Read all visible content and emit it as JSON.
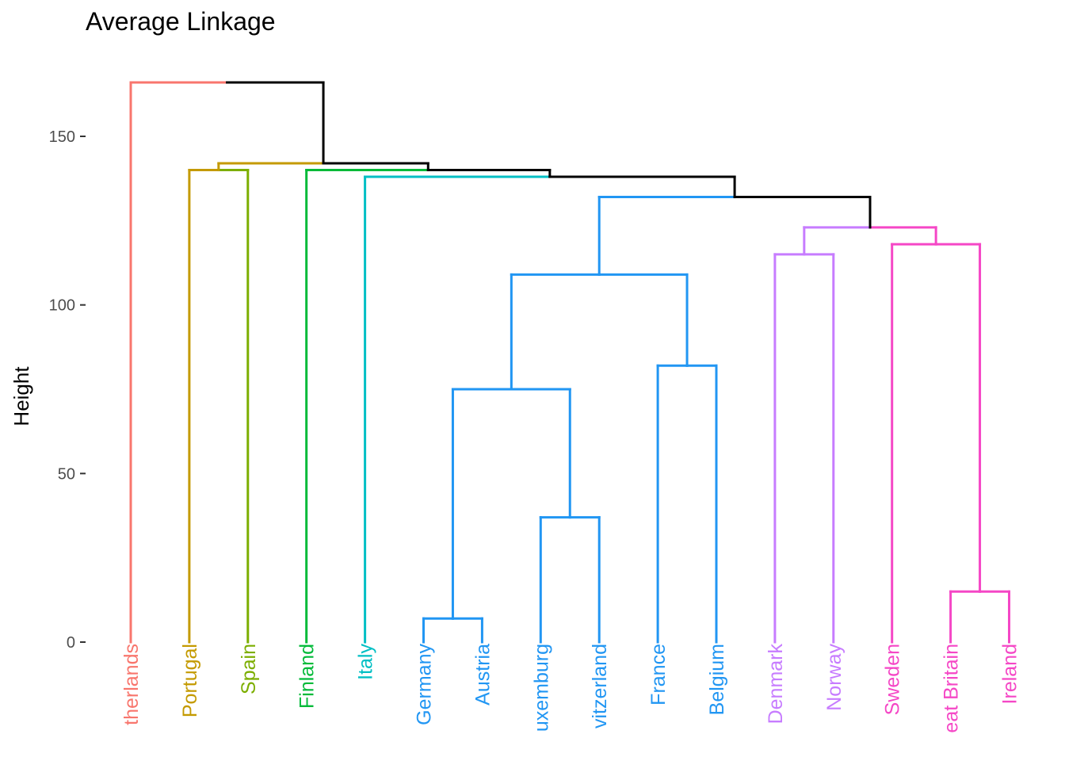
{
  "chart_data": {
    "type": "dendrogram",
    "title": "Average Linkage",
    "xlabel": "",
    "ylabel": "Height",
    "ylim": [
      0,
      165
    ],
    "yticks": [
      0,
      50,
      100,
      150
    ],
    "grid": false,
    "legend": "none",
    "leaves": [
      {
        "label": "therlands",
        "color": "#f8766d"
      },
      {
        "label": "Portugal",
        "color": "#c49a00"
      },
      {
        "label": "Spain",
        "color": "#7cae00"
      },
      {
        "label": "Finland",
        "color": "#00ba38"
      },
      {
        "label": "Italy",
        "color": "#00bfc4"
      },
      {
        "label": "Germany",
        "color": "#2196f3"
      },
      {
        "label": "Austria",
        "color": "#2196f3"
      },
      {
        "label": "uxemburg",
        "color": "#2196f3"
      },
      {
        "label": "vitzerland",
        "color": "#2196f3"
      },
      {
        "label": "France",
        "color": "#2196f3"
      },
      {
        "label": "Belgium",
        "color": "#2196f3"
      },
      {
        "label": "Denmark",
        "color": "#c77cff"
      },
      {
        "label": "Norway",
        "color": "#c77cff"
      },
      {
        "label": "Sweden",
        "color": "#f547c6"
      },
      {
        "label": "eat Britain",
        "color": "#f547c6"
      },
      {
        "label": "Ireland",
        "color": "#f547c6"
      }
    ],
    "merges": [
      {
        "id": "m1",
        "left": 5,
        "right": 6,
        "height": 7,
        "color": "#2196f3"
      },
      {
        "id": "m2",
        "left": 14,
        "right": 15,
        "height": 15,
        "color": "#f547c6"
      },
      {
        "id": "m3",
        "left": 7,
        "right": 8,
        "height": 37,
        "color": "#2196f3"
      },
      {
        "id": "m4",
        "left": "m1",
        "right": "m3",
        "height": 75,
        "color": "#2196f3"
      },
      {
        "id": "m5",
        "left": 9,
        "right": 10,
        "height": 82,
        "color": "#2196f3"
      },
      {
        "id": "m6",
        "left": "m4",
        "right": "m5",
        "height": 109,
        "color": "#2196f3"
      },
      {
        "id": "m7",
        "left": 11,
        "right": 12,
        "height": 115,
        "color": "#c77cff"
      },
      {
        "id": "m8",
        "left": 13,
        "right": "m2",
        "height": 118,
        "color": "#f547c6"
      },
      {
        "id": "m9",
        "left": "m7",
        "right": "m8",
        "height": 123,
        "color": "#000000"
      },
      {
        "id": "m10",
        "left": "m6",
        "right": "m9",
        "height": 132,
        "color": "#000000"
      },
      {
        "id": "m11",
        "left": 4,
        "right": "m10",
        "height": 138,
        "color": "#000000"
      },
      {
        "id": "m12",
        "left": 3,
        "right": "m11",
        "height": 140,
        "color": "#000000"
      },
      {
        "id": "m13",
        "left": 1,
        "right": 2,
        "height": 140,
        "color": "#c49a00"
      },
      {
        "id": "m14",
        "left": "m13",
        "right": "m12",
        "height": 142,
        "color": "#000000"
      },
      {
        "id": "m15",
        "left": 0,
        "right": "m14",
        "height": 166,
        "color": "#000000"
      }
    ]
  }
}
